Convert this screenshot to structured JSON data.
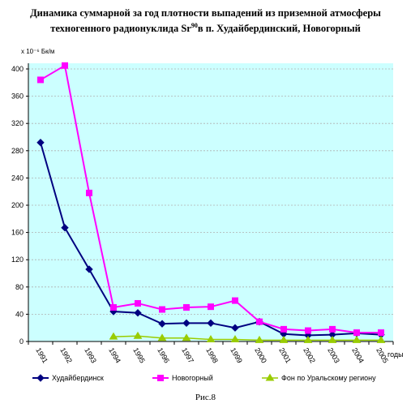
{
  "title": {
    "line1": "Динамика суммарной за год плотности выпадений из приземной атмосферы",
    "line2_pre": "техногенного радионуклида Sr",
    "line2_sup": "90",
    "line2_post": "в п. Худайбердинский, Новогорный"
  },
  "caption": "Рис.8",
  "colors": {
    "plot_background": "#ccffff",
    "grid": "#b0b0b0",
    "series_1": "#000080",
    "series_2": "#ff00ff",
    "series_3": "#99cc00"
  },
  "chart_data": {
    "type": "line",
    "title": "Динамика суммарной за год плотности выпадений из приземной атмосферы техногенного радионуклида Sr90в п. Худайбердинский, Новогорный",
    "ylabel": "x 10⁻⁶ Бк/м",
    "xlabel": "годы",
    "ylim": [
      0,
      400
    ],
    "yticks": [
      0,
      40,
      80,
      120,
      160,
      200,
      240,
      280,
      320,
      360,
      400
    ],
    "grid": "horizontal dashed",
    "legend_position": "bottom",
    "categories": [
      "1991",
      "1992",
      "1993",
      "1994",
      "1995",
      "1996",
      "1997",
      "1998",
      "1999",
      "2000",
      "2001",
      "2002",
      "2003",
      "2004",
      "2005"
    ],
    "series": [
      {
        "name": "Худайбердинск",
        "marker": "diamond",
        "values": [
          292,
          167,
          106,
          44,
          42,
          26,
          27,
          27,
          20,
          29,
          11,
          9,
          10,
          12,
          10
        ]
      },
      {
        "name": "Новогорный",
        "marker": "square",
        "values": [
          384,
          405,
          218,
          50,
          56,
          47,
          50,
          51,
          60,
          29,
          18,
          16,
          18,
          13,
          13
        ]
      },
      {
        "name": "Фон по Уральскому региону",
        "marker": "triangle",
        "values": [
          null,
          null,
          null,
          7,
          8,
          5,
          5,
          3,
          3,
          2,
          2,
          2,
          2,
          2,
          2
        ]
      }
    ]
  }
}
